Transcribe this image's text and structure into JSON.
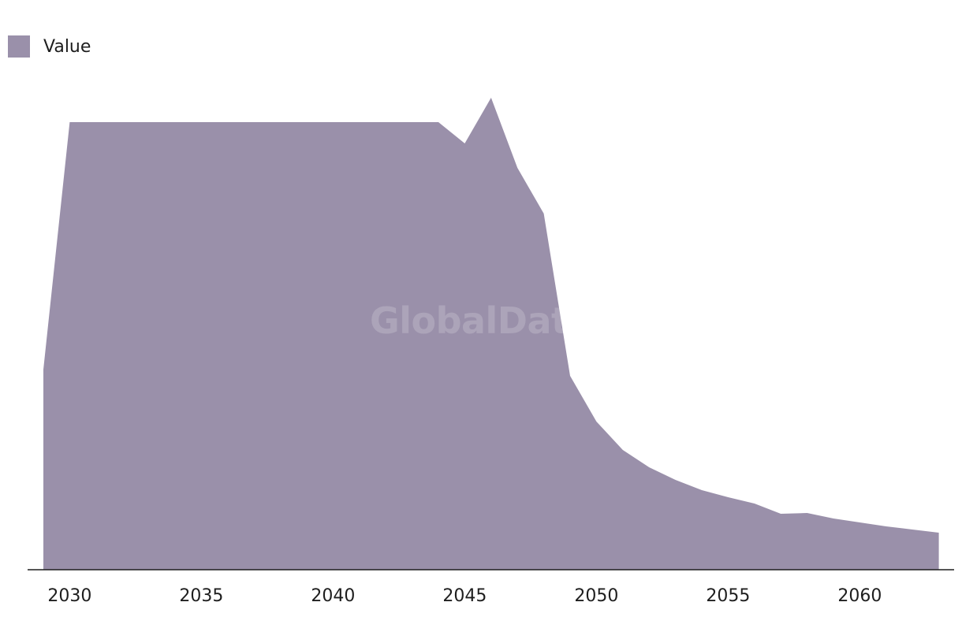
{
  "legend": {
    "label": "Value",
    "color": "#9a90aa"
  },
  "watermark": "GlobalData",
  "chart_data": {
    "type": "area",
    "x": [
      2029,
      2030,
      2031,
      2032,
      2033,
      2034,
      2035,
      2036,
      2037,
      2038,
      2039,
      2040,
      2041,
      2042,
      2043,
      2044,
      2045,
      2046,
      2047,
      2048,
      2049,
      2050,
      2051,
      2052,
      2053,
      2054,
      2055,
      2056,
      2057,
      2058,
      2059,
      2060,
      2061,
      2062,
      2063
    ],
    "series": [
      {
        "name": "Value",
        "color": "#9a90aa",
        "values": [
          254,
          568,
          568,
          568,
          568,
          568,
          568,
          568,
          568,
          568,
          568,
          568,
          568,
          568,
          568,
          568,
          541,
          599,
          510,
          452,
          246,
          188,
          152,
          130,
          114,
          101,
          92,
          84,
          71,
          72,
          65,
          60,
          55,
          51,
          47
        ]
      }
    ],
    "xticks": [
      2030,
      2035,
      2040,
      2045,
      2050,
      2055,
      2060
    ],
    "xlim": [
      2028,
      2063.6
    ],
    "ylim": [
      0,
      640
    ],
    "title": "",
    "xlabel": "",
    "ylabel": "",
    "grid": false,
    "legend_position": "top-left"
  }
}
